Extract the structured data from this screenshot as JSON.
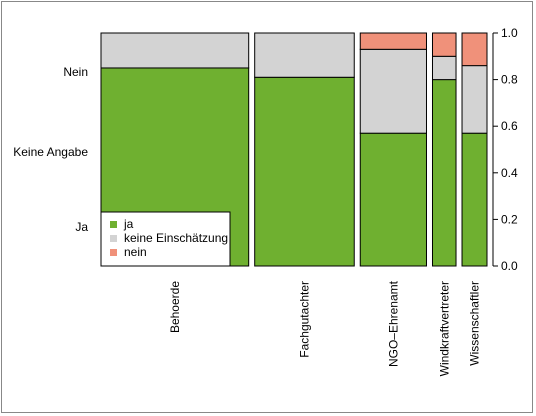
{
  "chart_data": {
    "type": "bar",
    "stacked": true,
    "variable_width": true,
    "categories": [
      "Behoerde",
      "Fachgutachter",
      "NGO–Ehrenamt",
      "Windkraftvertreter",
      "Wissenschaftler"
    ],
    "category_share": [
      0.408,
      0.275,
      0.183,
      0.065,
      0.069
    ],
    "series": [
      {
        "name": "ja",
        "color": "#6fb030",
        "values": [
          0.85,
          0.81,
          0.57,
          0.8,
          0.57
        ]
      },
      {
        "name": "keine Einschätzung",
        "color": "#d3d3d3",
        "values": [
          0.15,
          0.19,
          0.36,
          0.1,
          0.29
        ]
      },
      {
        "name": "nein",
        "color": "#f0917a",
        "values": [
          0.0,
          0.0,
          0.07,
          0.1,
          0.14
        ]
      }
    ],
    "left_axis_labels": [
      "Ja",
      "Keine Angabe",
      "Nein"
    ],
    "yticks": [
      "0.0",
      "0.2",
      "0.4",
      "0.6",
      "0.8",
      "1.0"
    ],
    "ylim": [
      0,
      1
    ],
    "legend_position": "bottom-left",
    "legend": [
      "ja",
      "keine Einschätzung",
      "nein"
    ]
  }
}
